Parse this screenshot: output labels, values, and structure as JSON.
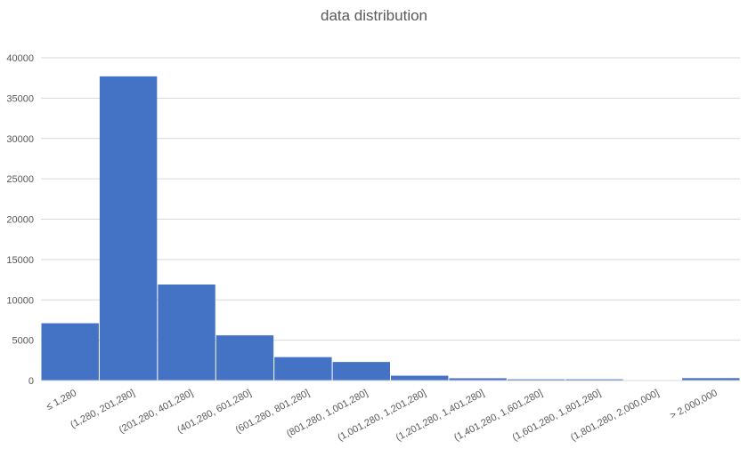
{
  "chart_data": {
    "type": "bar",
    "title": "data distribution",
    "xlabel": "",
    "ylabel": "",
    "categories": [
      "≤ 1,280",
      "(1,280, 201,280]",
      "(201,280, 401,280]",
      "(401,280, 601,280]",
      "(601,280, 801,280]",
      "(801,280, 1,001,280]",
      "(1,001,280, 1,201,280]",
      "(1,201,280, 1,401,280]",
      "(1,401,280, 1,601,280]",
      "(1,601,280, 1,801,280]",
      "(1,801,280, 2,000,000]",
      "> 2,000,000"
    ],
    "values": [
      7100,
      37700,
      11900,
      5600,
      2900,
      2300,
      600,
      280,
      150,
      150,
      0,
      300
    ],
    "ylim": [
      0,
      40000
    ],
    "yticks": [
      "0",
      "5000",
      "10000",
      "15000",
      "20000",
      "25000",
      "30000",
      "35000",
      "40000"
    ],
    "grid": true,
    "legend": "none",
    "colors": {
      "bar": "#4472C4",
      "grid": "#D9D9D9",
      "text": "#595959"
    }
  }
}
